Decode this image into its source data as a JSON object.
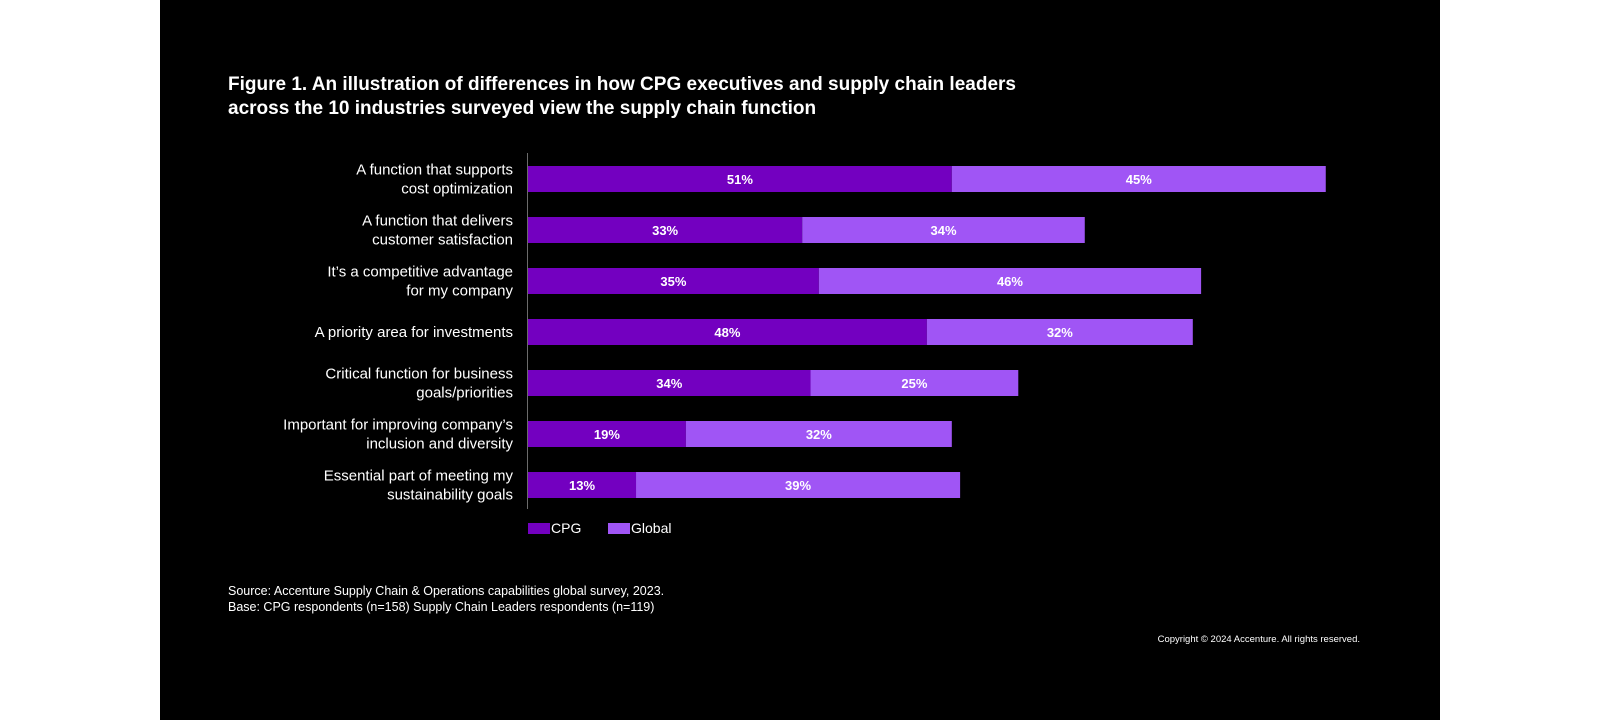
{
  "title_lines": [
    "Figure 1. An illustration of differences in how CPG executives and supply chain leaders",
    "across the 10 industries surveyed view the supply chain function"
  ],
  "colors": {
    "background": "#000000",
    "cpg": "#7300c0",
    "global": "#a055f5",
    "text": "#ffffff"
  },
  "chart_data": {
    "type": "bar",
    "orientation": "horizontal",
    "stacked": true,
    "categories": [
      [
        "A function that supports",
        "cost optimization"
      ],
      [
        "A function that delivers",
        "customer satisfaction"
      ],
      [
        "It’s a competitive advantage",
        "for my company"
      ],
      [
        "A priority area for investments"
      ],
      [
        "Critical function for business",
        "goals/priorities"
      ],
      [
        "Important for improving company’s",
        "inclusion and diversity"
      ],
      [
        "Essential part of meeting my",
        "sustainability goals"
      ]
    ],
    "series": [
      {
        "name": "CPG",
        "values": [
          51,
          33,
          35,
          48,
          34,
          19,
          13
        ],
        "labels": [
          "51%",
          "33%",
          "35%",
          "48%",
          "34%",
          "19%",
          "13%"
        ]
      },
      {
        "name": "Global",
        "values": [
          45,
          34,
          46,
          32,
          25,
          32,
          39
        ],
        "labels": [
          "45%",
          "34%",
          "46%",
          "32%",
          "25%",
          "32%",
          "39%"
        ]
      }
    ],
    "unit": "%",
    "legend_position": "bottom-left",
    "grid": false
  },
  "notes": [
    "Source: Accenture Supply Chain & Operations capabilities global survey, 2023.",
    "Base: CPG respondents (n=158) Supply Chain Leaders respondents (n=119)"
  ],
  "copyright": "Copyright © 2024 Accenture. All rights reserved."
}
